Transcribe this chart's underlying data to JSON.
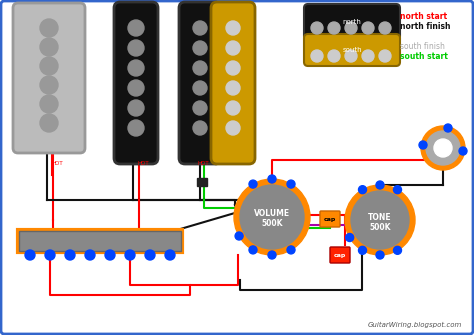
{
  "bg_color": "#ffffff",
  "border_color": "#3366cc",
  "title": "GuitarWiring.blogspot.com",
  "legend": {
    "north_start": "north start",
    "north_finish": "north finish",
    "south_finish": "south finish",
    "south_start": "south start",
    "colors": {
      "north_start": "#ff0000",
      "north_finish": "#111111",
      "south_finish": "#aaaaaa",
      "south_start": "#00cc00"
    }
  },
  "pickup_colors": {
    "neck": "#bbbbbb",
    "mid_black": "#111111",
    "bridge_black": "#111111",
    "bridge_gold": "#cc9900"
  },
  "wire_colors": {
    "red": "#ff0000",
    "black": "#111111",
    "green": "#00cc00",
    "white": "#ffffff",
    "purple": "#aa00aa",
    "orange": "#ff8800"
  },
  "pot_color": "#888888",
  "pot_ring_color": "#ff8800",
  "connector_color": "#0044ff",
  "cap_color": "#ff2200",
  "cap_text_color": "#ff8800",
  "jack_ring": "#ff8800",
  "switch_color": "#888888",
  "switch_ring_color": "#ff8800"
}
